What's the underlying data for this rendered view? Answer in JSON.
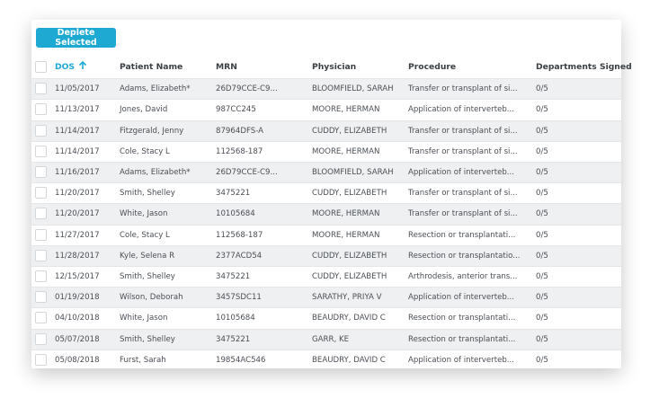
{
  "button": {
    "label": "Deplete Selected"
  },
  "table": {
    "columns": [
      "DOS",
      "Patient Name",
      "MRN",
      "Physician",
      "Procedure",
      "Departments Signed"
    ],
    "rows": [
      [
        "11/05/2017",
        "Adams, Elizabeth*",
        "26D79CCE-C9...",
        "BLOOMFIELD, SARAH",
        "Transfer or transplant of si...",
        "0/5"
      ],
      [
        "11/13/2017",
        "Jones, David",
        "987CC245",
        "MOORE, HERMAN",
        "Application of interverteb...",
        "0/5"
      ],
      [
        "11/14/2017",
        "Fitzgerald, Jenny",
        "87964DFS-A",
        "CUDDY, ELIZABETH",
        "Transfer or transplant of si...",
        "0/5"
      ],
      [
        "11/14/2017",
        "Cole, Stacy L",
        "112568-187",
        "MOORE, HERMAN",
        "Transfer or transplant of si...",
        "0/5"
      ],
      [
        "11/16/2017",
        "Adams, Elizabeth*",
        "26D79CCE-C9...",
        "BLOOMFIELD, SARAH",
        "Application of interverteb...",
        "0/5"
      ],
      [
        "11/20/2017",
        "Smith, Shelley",
        "3475221",
        "CUDDY, ELIZABETH",
        "Transfer or transplant of si...",
        "0/5"
      ],
      [
        "11/20/2017",
        "White, Jason",
        "10105684",
        "MOORE, HERMAN",
        "Transfer or transplant of si...",
        "0/5"
      ],
      [
        "11/27/2017",
        "Cole, Stacy L",
        "112568-187",
        "MOORE, HERMAN",
        "Resection or transplantati...",
        "0/5"
      ],
      [
        "11/28/2017",
        "Kyle, Selena R",
        "2377ACD54",
        "CUDDY, ELIZABETH",
        "Resection or transplantatio...",
        "0/5"
      ],
      [
        "12/15/2017",
        "Smith, Shelley",
        "3475221",
        "CUDDY, ELIZABETH",
        "Arthrodesis, anterior trans...",
        "0/5"
      ],
      [
        "01/19/2018",
        "Wilson, Deborah",
        "3457SDC11",
        "SARATHY, PRIYA V",
        "Application of interverteb...",
        "0/5"
      ],
      [
        "04/10/2018",
        "White, Jason",
        "10105684",
        "BEAUDRY, DAVID C",
        "Resection or transplantati...",
        "0/5"
      ],
      [
        "05/07/2018",
        "Smith, Shelley",
        "3475221",
        "GARR, KE",
        "Resection or transplantati...",
        "0/5"
      ],
      [
        "05/08/2018",
        "Furst, Sarah",
        "19854AC546",
        "BEAUDRY, DAVID C",
        "Application of interverteb...",
        "0/5"
      ]
    ]
  }
}
